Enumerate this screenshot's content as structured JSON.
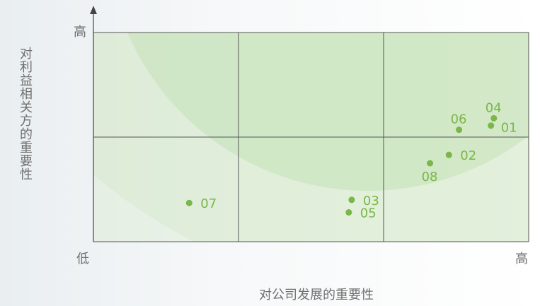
{
  "chart_data": {
    "type": "scatter",
    "x_axis_label": "对公司发展的重要性",
    "y_axis_label": "对利益相关方的重要性",
    "xlim": [
      0,
      3
    ],
    "ylim": [
      0,
      2
    ],
    "xticks": [
      {
        "value": 0,
        "label": "低"
      },
      {
        "value": 3,
        "label": "高"
      }
    ],
    "yticks": [
      {
        "value": 2,
        "label": "高"
      }
    ],
    "xgrid": [
      1,
      2
    ],
    "ygrid": [
      1
    ],
    "series": [
      {
        "color": "#7ab648",
        "point_labels": [
          "01",
          "02",
          "03",
          "04",
          "05",
          "06",
          "07",
          "08"
        ],
        "x": [
          2.74,
          2.45,
          1.78,
          2.76,
          1.76,
          2.52,
          0.66,
          2.32
        ],
        "values": [
          1.11,
          0.83,
          0.4,
          1.18,
          0.28,
          1.07,
          0.37,
          0.75
        ]
      }
    ]
  }
}
